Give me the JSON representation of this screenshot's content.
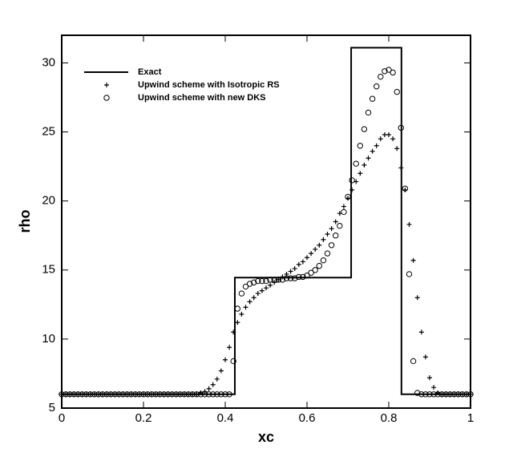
{
  "chart_data": {
    "type": "line",
    "xlabel": "xc",
    "ylabel": "rho",
    "xlim": [
      0,
      1
    ],
    "ylim": [
      5,
      32
    ],
    "xticks": [
      0,
      0.2,
      0.4,
      0.6,
      0.8,
      1
    ],
    "yticks": [
      5,
      10,
      15,
      20,
      25,
      30
    ],
    "legend": "top-left",
    "series": [
      {
        "name": "Exact",
        "style": "line",
        "color": "#000000",
        "x": [
          0,
          0.4235,
          0.4235,
          0.708,
          0.708,
          0.831,
          0.831,
          1
        ],
        "values": [
          6,
          6,
          14.45,
          14.45,
          31.1,
          31.1,
          6,
          6
        ]
      },
      {
        "name": "Upwind scheme with Isotropic RS",
        "style": "plus",
        "color": "#000000",
        "x": [
          0,
          0.01,
          0.02,
          0.03,
          0.04,
          0.05,
          0.06,
          0.07,
          0.08,
          0.09,
          0.1,
          0.11,
          0.12,
          0.13,
          0.14,
          0.15,
          0.16,
          0.17,
          0.18,
          0.19,
          0.2,
          0.21,
          0.22,
          0.23,
          0.24,
          0.25,
          0.26,
          0.27,
          0.28,
          0.29,
          0.3,
          0.31,
          0.32,
          0.33,
          0.34,
          0.35,
          0.36,
          0.37,
          0.38,
          0.39,
          0.4,
          0.41,
          0.42,
          0.43,
          0.44,
          0.45,
          0.46,
          0.47,
          0.48,
          0.49,
          0.5,
          0.51,
          0.52,
          0.53,
          0.54,
          0.55,
          0.56,
          0.57,
          0.58,
          0.59,
          0.6,
          0.61,
          0.62,
          0.63,
          0.64,
          0.65,
          0.66,
          0.67,
          0.68,
          0.69,
          0.7,
          0.71,
          0.72,
          0.73,
          0.74,
          0.75,
          0.76,
          0.77,
          0.78,
          0.79,
          0.8,
          0.81,
          0.82,
          0.83,
          0.84,
          0.85,
          0.86,
          0.87,
          0.88,
          0.89,
          0.9,
          0.91,
          0.92,
          0.93,
          0.94,
          0.95,
          0.96,
          0.97,
          0.98,
          0.99,
          1
        ],
        "values": [
          6,
          6,
          6,
          6,
          6,
          6,
          6,
          6,
          6,
          6,
          6,
          6,
          6,
          6,
          6,
          6,
          6,
          6,
          6,
          6,
          6,
          6,
          6,
          6,
          6,
          6,
          6,
          6,
          6,
          6,
          6,
          6,
          6,
          6,
          6.1,
          6.2,
          6.4,
          6.7,
          7.1,
          7.7,
          8.5,
          9.4,
          10.5,
          11.2,
          11.8,
          12.3,
          12.7,
          13.0,
          13.3,
          13.5,
          13.7,
          13.9,
          14.1,
          14.3,
          14.5,
          14.7,
          14.9,
          15.1,
          15.4,
          15.6,
          15.9,
          16.2,
          16.5,
          16.8,
          17.2,
          17.6,
          18.0,
          18.5,
          19.1,
          19.6,
          20.2,
          20.8,
          21.4,
          22.0,
          22.6,
          23.1,
          23.6,
          24.0,
          24.5,
          24.8,
          24.8,
          24.5,
          23.8,
          22.4,
          20.8,
          18.3,
          15.7,
          13.0,
          10.5,
          8.7,
          7.2,
          6.5,
          6.1,
          6,
          6,
          6,
          6,
          6,
          6,
          6,
          6
        ]
      },
      {
        "name": "Upwind scheme with new DKS",
        "style": "circle",
        "color": "#000000",
        "x": [
          0,
          0.01,
          0.02,
          0.03,
          0.04,
          0.05,
          0.06,
          0.07,
          0.08,
          0.09,
          0.1,
          0.11,
          0.12,
          0.13,
          0.14,
          0.15,
          0.16,
          0.17,
          0.18,
          0.19,
          0.2,
          0.21,
          0.22,
          0.23,
          0.24,
          0.25,
          0.26,
          0.27,
          0.28,
          0.29,
          0.3,
          0.31,
          0.32,
          0.33,
          0.34,
          0.35,
          0.36,
          0.37,
          0.38,
          0.39,
          0.4,
          0.41,
          0.42,
          0.43,
          0.44,
          0.45,
          0.46,
          0.47,
          0.48,
          0.49,
          0.5,
          0.51,
          0.52,
          0.53,
          0.54,
          0.55,
          0.56,
          0.57,
          0.58,
          0.59,
          0.6,
          0.61,
          0.62,
          0.63,
          0.64,
          0.65,
          0.66,
          0.67,
          0.68,
          0.69,
          0.7,
          0.71,
          0.72,
          0.73,
          0.74,
          0.75,
          0.76,
          0.77,
          0.78,
          0.79,
          0.8,
          0.81,
          0.82,
          0.83,
          0.84,
          0.85,
          0.86,
          0.87,
          0.88,
          0.89,
          0.9,
          0.91,
          0.92,
          0.93,
          0.94,
          0.95,
          0.96,
          0.97,
          0.98,
          0.99,
          1
        ],
        "values": [
          6,
          6,
          6,
          6,
          6,
          6,
          6,
          6,
          6,
          6,
          6,
          6,
          6,
          6,
          6,
          6,
          6,
          6,
          6,
          6,
          6,
          6,
          6,
          6,
          6,
          6,
          6,
          6,
          6,
          6,
          6,
          6,
          6,
          6,
          6,
          6,
          6,
          6,
          6,
          6,
          6,
          6,
          8.4,
          12.2,
          13.3,
          13.8,
          14.0,
          14.1,
          14.2,
          14.2,
          14.2,
          14.3,
          14.3,
          14.3,
          14.3,
          14.4,
          14.4,
          14.4,
          14.5,
          14.5,
          14.6,
          14.8,
          15.0,
          15.3,
          15.7,
          16.2,
          16.8,
          17.5,
          18.2,
          19.2,
          20.3,
          21.5,
          22.7,
          24.0,
          25.2,
          26.4,
          27.4,
          28.3,
          29.0,
          29.4,
          29.5,
          29.3,
          27.9,
          25.3,
          20.9,
          14.7,
          8.4,
          6.1,
          6,
          6,
          6,
          6,
          6,
          6,
          6,
          6,
          6,
          6,
          6,
          6,
          6
        ]
      }
    ]
  }
}
